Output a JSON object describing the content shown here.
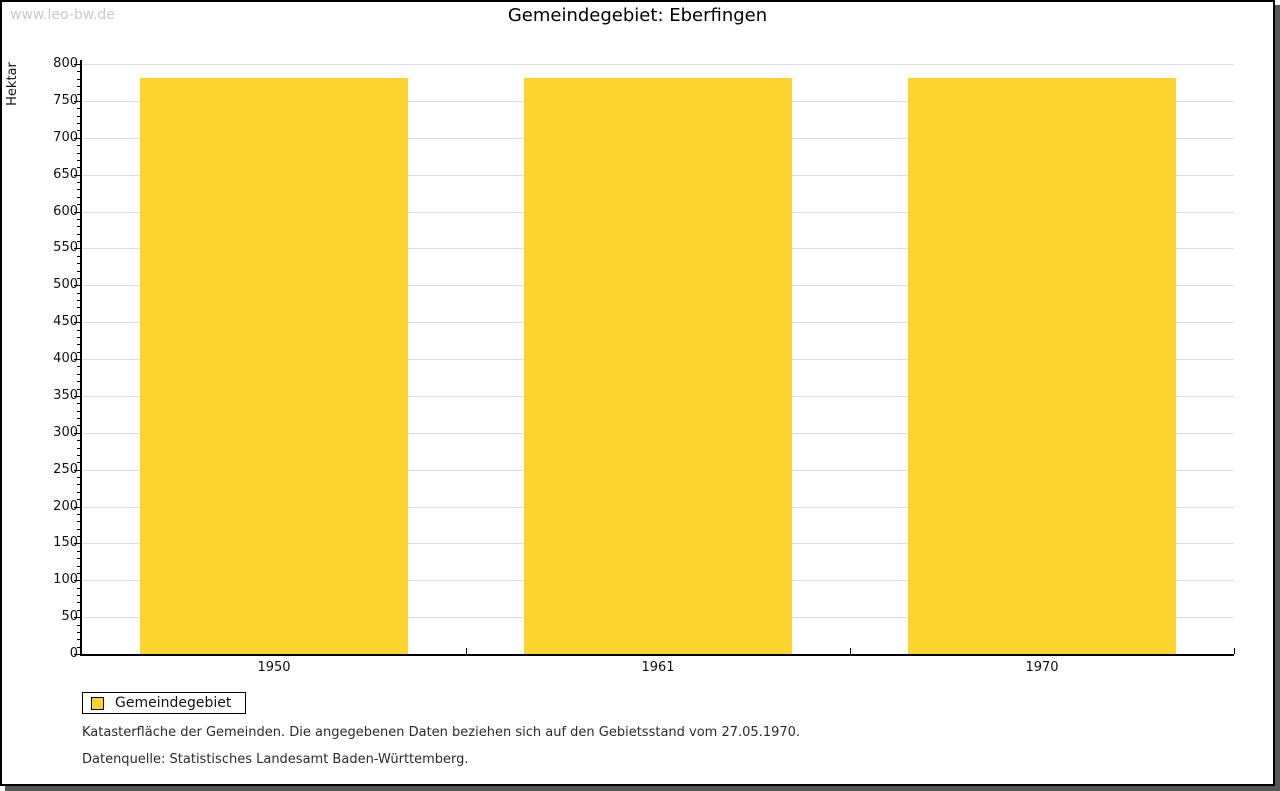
{
  "watermark": "www.leo-bw.de",
  "title": "Gemeindegebiet: Eberfingen",
  "chart_data": {
    "type": "bar",
    "title": "Gemeindegebiet: Eberfingen",
    "categories": [
      "1950",
      "1961",
      "1970"
    ],
    "series": [
      {
        "name": "Gemeindegebiet",
        "values": [
          781,
          781,
          781
        ],
        "color": "#fdd32e"
      }
    ],
    "xlabel": "",
    "ylabel": "Hektar",
    "ylim": [
      0,
      800
    ],
    "ytick_major": 50,
    "ytick_minor": 10,
    "grid": true,
    "legend_position": "bottom-left"
  },
  "legend": {
    "items": [
      {
        "label": "Gemeindegebiet",
        "color": "#fdd32e"
      }
    ]
  },
  "footnotes": [
    "Katasterfläche der Gemeinden. Die angegebenen Daten beziehen sich auf den Gebietsstand vom 27.05.1970.",
    "Datenquelle: Statistisches Landesamt Baden-Württemberg."
  ],
  "colors": {
    "bar": "#fdd32e",
    "grid": "#dedede",
    "axis": "#000000",
    "watermark": "#c9c9c9",
    "text": "#111111",
    "frame_border": "#000000",
    "frame_shadow": "#565656"
  }
}
